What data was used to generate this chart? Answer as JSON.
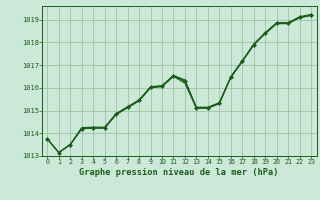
{
  "title": "Graphe pression niveau de la mer (hPa)",
  "bg_color": "#cce8d8",
  "grid_color": "#99bb99",
  "line_color": "#1a5c1a",
  "ylim": [
    1013.0,
    1019.6
  ],
  "xlim": [
    -0.5,
    23.5
  ],
  "yticks": [
    1013,
    1014,
    1015,
    1016,
    1017,
    1018,
    1019
  ],
  "xticks": [
    0,
    1,
    2,
    3,
    4,
    5,
    6,
    7,
    8,
    9,
    10,
    11,
    12,
    13,
    14,
    15,
    16,
    17,
    18,
    19,
    20,
    21,
    22,
    23
  ],
  "series1": [
    1013.75,
    1013.15,
    1013.5,
    1014.2,
    1014.22,
    1014.22,
    1014.82,
    1015.12,
    1015.42,
    1016.0,
    1016.05,
    1016.5,
    1016.2,
    1015.1,
    1015.1,
    1015.3,
    1016.45,
    1017.15,
    1017.88,
    1018.38,
    1018.82,
    1018.82,
    1019.08,
    1019.18
  ],
  "series2": [
    1013.75,
    1013.15,
    1013.5,
    1014.22,
    1014.24,
    1014.24,
    1014.84,
    1015.14,
    1015.44,
    1016.02,
    1016.07,
    1016.52,
    1016.3,
    1015.12,
    1015.12,
    1015.32,
    1016.47,
    1017.17,
    1017.9,
    1018.4,
    1018.84,
    1018.84,
    1019.1,
    1019.2
  ],
  "series3": [
    1013.75,
    1013.15,
    1013.52,
    1014.25,
    1014.27,
    1014.27,
    1014.87,
    1015.17,
    1015.47,
    1016.05,
    1016.1,
    1016.55,
    1016.35,
    1015.15,
    1015.15,
    1015.35,
    1016.5,
    1017.2,
    1017.93,
    1018.43,
    1018.87,
    1018.87,
    1019.13,
    1019.23
  ],
  "series_marker": [
    1013.75,
    1013.15,
    1013.5,
    1014.2,
    1014.25,
    1014.25,
    1014.85,
    1015.15,
    1015.45,
    1016.02,
    1016.08,
    1016.52,
    1016.28,
    1015.1,
    1015.12,
    1015.32,
    1016.47,
    1017.17,
    1017.9,
    1018.4,
    1018.84,
    1018.84,
    1019.1,
    1019.2
  ]
}
